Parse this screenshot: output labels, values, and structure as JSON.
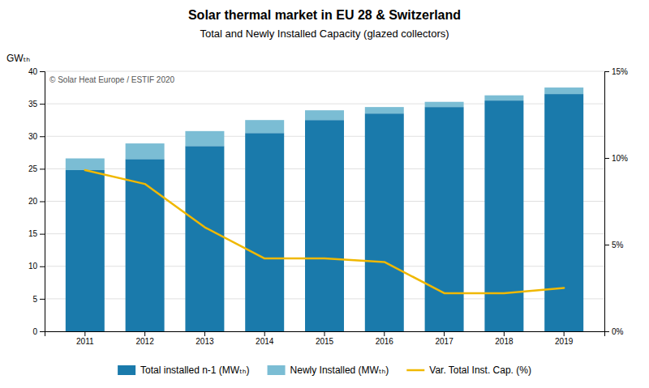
{
  "chart_data": {
    "type": "bar",
    "title": "Solar thermal market in EU 28 & Switzerland",
    "subtitle": "Total and Newly Installed Capacity (glazed collectors)",
    "ylabel": "GWₜₕ",
    "annotations": [
      "© Solar Heat Europe / ESTIF 2020"
    ],
    "categories": [
      "2011",
      "2012",
      "2013",
      "2014",
      "2015",
      "2016",
      "2017",
      "2018",
      "2019"
    ],
    "stacked": true,
    "series": [
      {
        "name": "Total installed n-1 (MWₜₕ)",
        "type": "bar",
        "color": "#1a7aab",
        "values": [
          24.8,
          26.5,
          28.5,
          30.5,
          32.5,
          33.5,
          34.5,
          35.5,
          36.5
        ]
      },
      {
        "name": "Newly Installed (MWₜₕ)",
        "type": "bar",
        "color": "#7bbdd4",
        "values": [
          1.8,
          2.4,
          2.3,
          2.0,
          1.5,
          1.0,
          0.8,
          0.8,
          1.0
        ]
      },
      {
        "name": "Var. Total Inst. Cap. (%)",
        "type": "line",
        "axis": "y2",
        "color": "#f0b800",
        "values": [
          9.3,
          8.5,
          6.0,
          4.2,
          4.2,
          4.0,
          2.2,
          2.2,
          2.5
        ]
      }
    ],
    "ylim": [
      0,
      40
    ],
    "yticks": [
      0,
      5,
      10,
      15,
      20,
      25,
      30,
      35,
      40
    ],
    "y2lim": [
      0,
      15
    ],
    "y2ticks": [
      {
        "value": 0,
        "label": "0%"
      },
      {
        "value": 5,
        "label": "5%"
      },
      {
        "value": 10,
        "label": "10%"
      },
      {
        "value": 15,
        "label": "15%"
      }
    ],
    "grid": true,
    "legend": "bottom"
  }
}
